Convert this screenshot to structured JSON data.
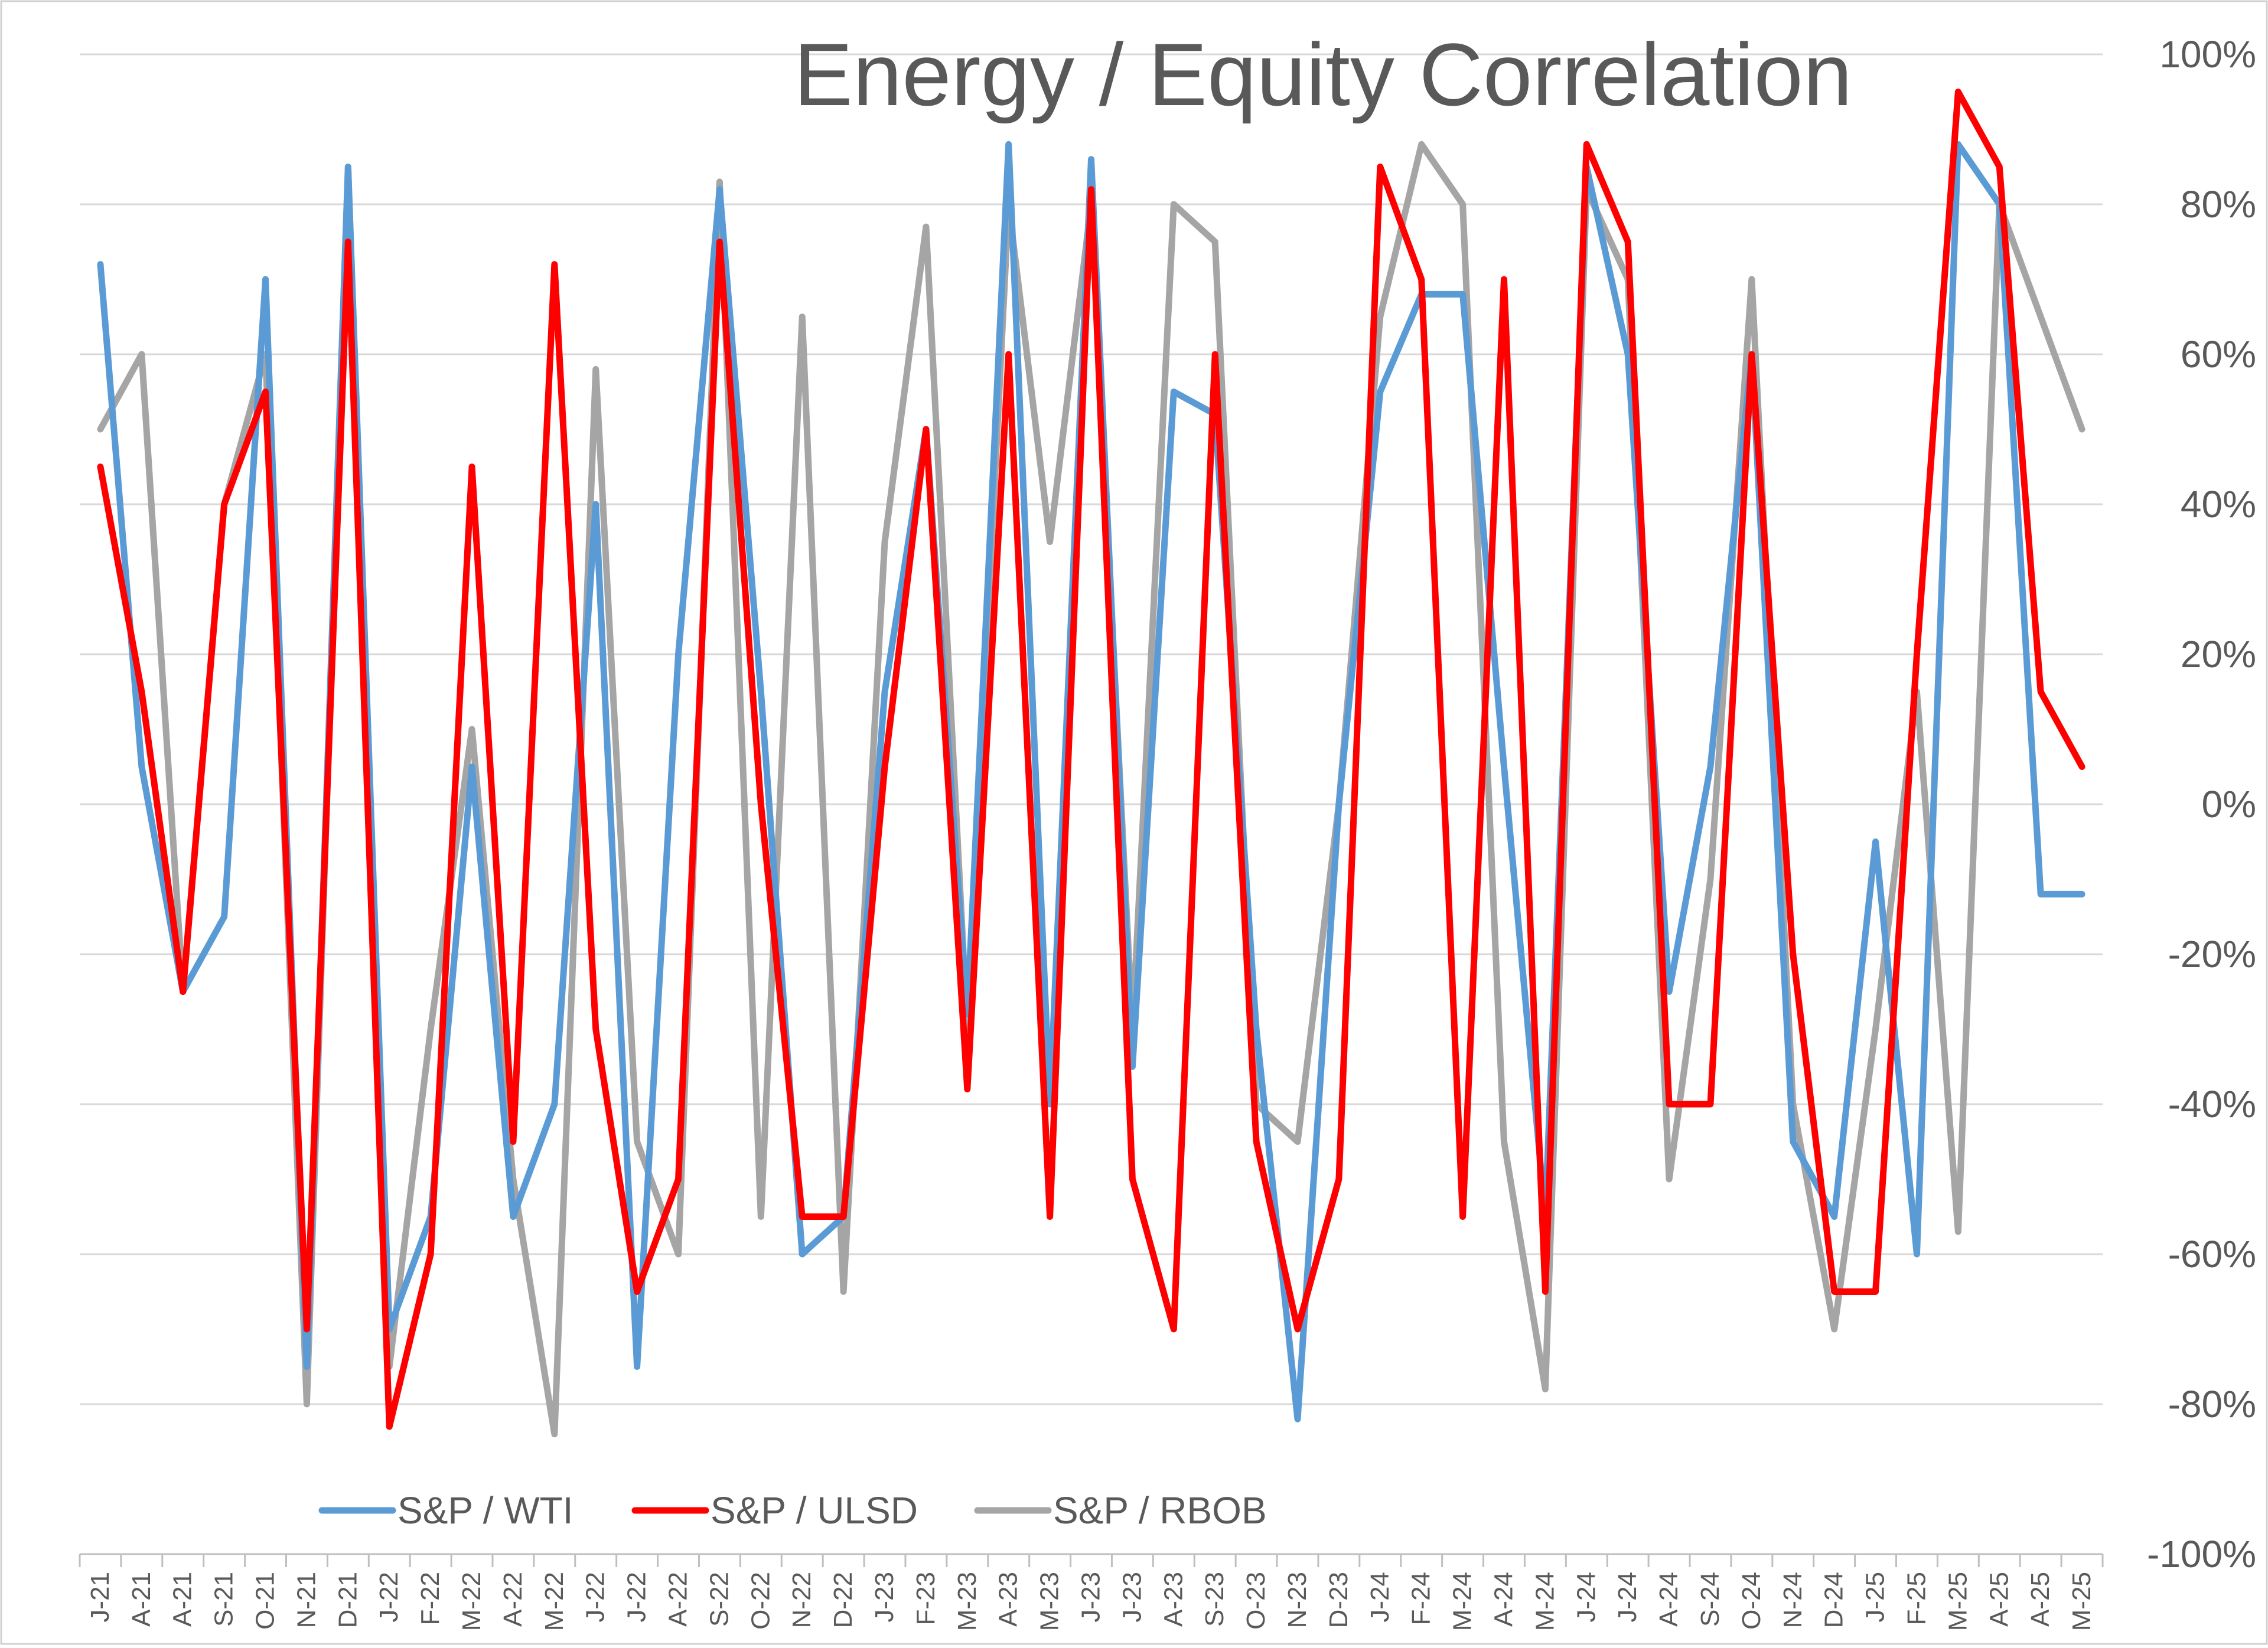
{
  "chart_data": {
    "type": "line",
    "title": "Energy / Equity Correlation",
    "xlabel": "",
    "ylabel": "",
    "y_axis_side": "right",
    "ylim": [
      -1.0,
      1.0
    ],
    "y_ticks": [
      1.0,
      0.8,
      0.6,
      0.4,
      0.2,
      0.0,
      -0.2,
      -0.4,
      -0.6,
      -0.8,
      -1.0
    ],
    "y_tick_labels": [
      "100%",
      "80%",
      "60%",
      "40%",
      "20%",
      "0%",
      "-20%",
      "-40%",
      "-60%",
      "-80%",
      "-100%"
    ],
    "grid": true,
    "legend_position": "bottom-center",
    "x_tick_labels": [
      "J-21",
      "A-21",
      "A-21",
      "S-21",
      "O-21",
      "N-21",
      "D-21",
      "J-22",
      "F-22",
      "M-22",
      "A-22",
      "M-22",
      "J-22",
      "J-22",
      "A-22",
      "S-22",
      "O-22",
      "N-22",
      "D-22",
      "J-23",
      "F-23",
      "M-23",
      "A-23",
      "M-23",
      "J-23",
      "J-23",
      "A-23",
      "S-23",
      "O-23",
      "N-23",
      "D-23",
      "J-24",
      "F-24",
      "M-24",
      "A-24",
      "M-24",
      "J-24",
      "J-24",
      "A-24",
      "S-24",
      "O-24",
      "N-24",
      "D-24",
      "J-25",
      "F-25",
      "M-25",
      "A-25",
      "A-25",
      "M-25"
    ],
    "x": [
      0,
      1,
      2,
      3,
      4,
      5,
      6,
      7,
      8,
      9,
      10,
      11,
      12,
      13,
      14,
      15,
      16,
      17,
      18,
      19,
      20,
      21,
      22,
      23,
      24,
      25,
      26,
      27,
      28,
      29,
      30,
      31,
      32,
      33,
      34,
      35,
      36,
      37,
      38,
      39,
      40,
      41,
      42,
      43,
      44,
      45,
      46,
      47,
      48
    ],
    "series": [
      {
        "name": "S&P / WTI",
        "color": "#5b9bd5",
        "values": [
          0.72,
          0.05,
          -0.25,
          -0.15,
          0.7,
          -0.75,
          0.85,
          -0.7,
          -0.55,
          0.05,
          -0.55,
          -0.4,
          0.4,
          -0.75,
          0.2,
          0.82,
          0.15,
          -0.6,
          -0.55,
          0.15,
          0.5,
          -0.28,
          0.88,
          -0.4,
          0.86,
          -0.35,
          0.55,
          0.52,
          -0.3,
          -0.82,
          0.0,
          0.55,
          0.68,
          0.68,
          0.05,
          -0.55,
          0.85,
          0.6,
          -0.25,
          0.05,
          0.6,
          -0.45,
          -0.55,
          -0.05,
          -0.6,
          0.88,
          0.8,
          -0.12,
          -0.12
        ]
      },
      {
        "name": "S&P / ULSD",
        "color": "#ff0000",
        "values": [
          0.45,
          0.15,
          -0.25,
          0.4,
          0.55,
          -0.7,
          0.75,
          -0.83,
          -0.6,
          0.45,
          -0.45,
          0.72,
          -0.3,
          -0.65,
          -0.5,
          0.75,
          0.0,
          -0.55,
          -0.55,
          0.05,
          0.5,
          -0.38,
          0.6,
          -0.55,
          0.82,
          -0.5,
          -0.7,
          0.6,
          -0.45,
          -0.7,
          -0.5,
          0.85,
          0.7,
          -0.55,
          0.7,
          -0.65,
          0.88,
          0.75,
          -0.4,
          -0.4,
          0.6,
          -0.2,
          -0.65,
          -0.65,
          0.2,
          0.95,
          0.85,
          0.15,
          0.05
        ]
      },
      {
        "name": "S&P / RBOB",
        "color": "#a5a5a5",
        "values": [
          0.5,
          0.6,
          -0.25,
          0.4,
          0.6,
          -0.8,
          0.85,
          -0.75,
          -0.3,
          0.1,
          -0.5,
          -0.84,
          0.58,
          -0.45,
          -0.6,
          0.83,
          -0.55,
          0.65,
          -0.65,
          0.35,
          0.77,
          -0.3,
          0.8,
          0.35,
          0.8,
          -0.3,
          0.8,
          0.75,
          -0.4,
          -0.45,
          0.0,
          0.65,
          0.88,
          0.8,
          -0.45,
          -0.78,
          0.82,
          0.7,
          -0.5,
          -0.1,
          0.7,
          -0.4,
          -0.7,
          -0.3,
          0.15,
          -0.57,
          0.8,
          0.65,
          0.5
        ]
      }
    ]
  }
}
